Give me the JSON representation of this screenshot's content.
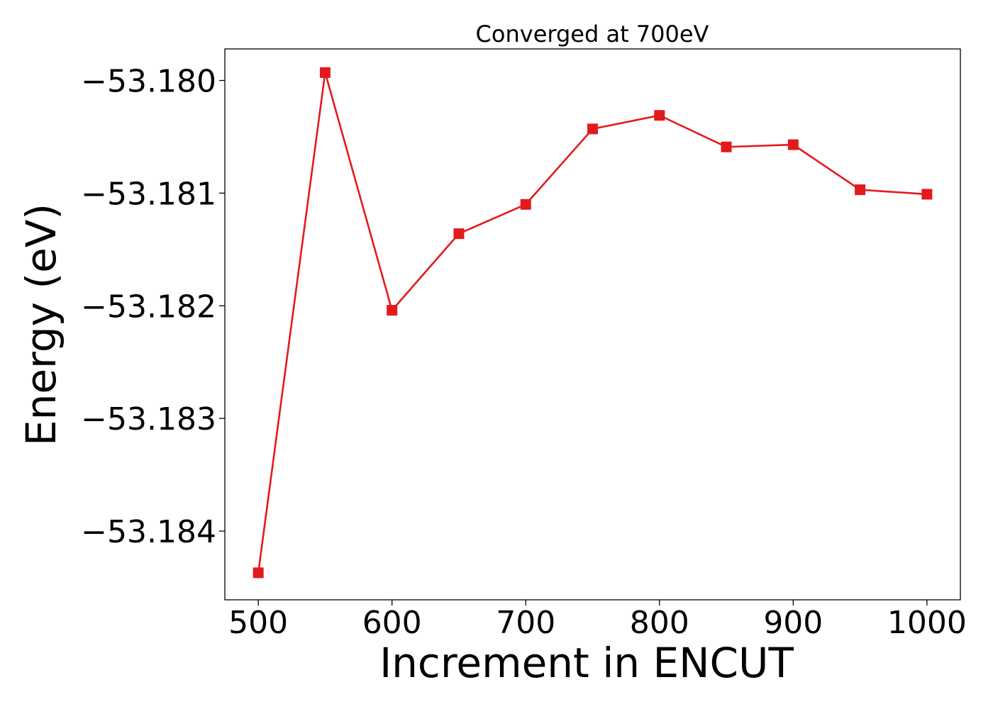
{
  "chart_data": {
    "type": "line",
    "title": "Converged at 700eV",
    "xlabel": "Increment in ENCUT",
    "ylabel": "Energy (eV)",
    "xlim": [
      475,
      1025
    ],
    "ylim": [
      -53.18461,
      -53.17972
    ],
    "xticks": [
      500,
      600,
      700,
      800,
      900,
      1000
    ],
    "xtick_labels": [
      "500",
      "600",
      "700",
      "800",
      "900",
      "1000"
    ],
    "yticks": [
      -53.18,
      -53.181,
      -53.182,
      -53.183,
      -53.184
    ],
    "ytick_labels": [
      "−53.180",
      "−53.181",
      "−53.182",
      "−53.183",
      "−53.184"
    ],
    "grid": false,
    "series": [
      {
        "color": "#e31a1c",
        "marker": "square",
        "x": [
          500,
          550,
          600,
          650,
          700,
          750,
          800,
          850,
          900,
          950,
          1000
        ],
        "y": [
          -53.18437,
          -53.17993,
          -53.18204,
          -53.18136,
          -53.1811,
          -53.18043,
          -53.18031,
          -53.18059,
          -53.18057,
          -53.18097,
          -53.18101
        ]
      }
    ]
  }
}
